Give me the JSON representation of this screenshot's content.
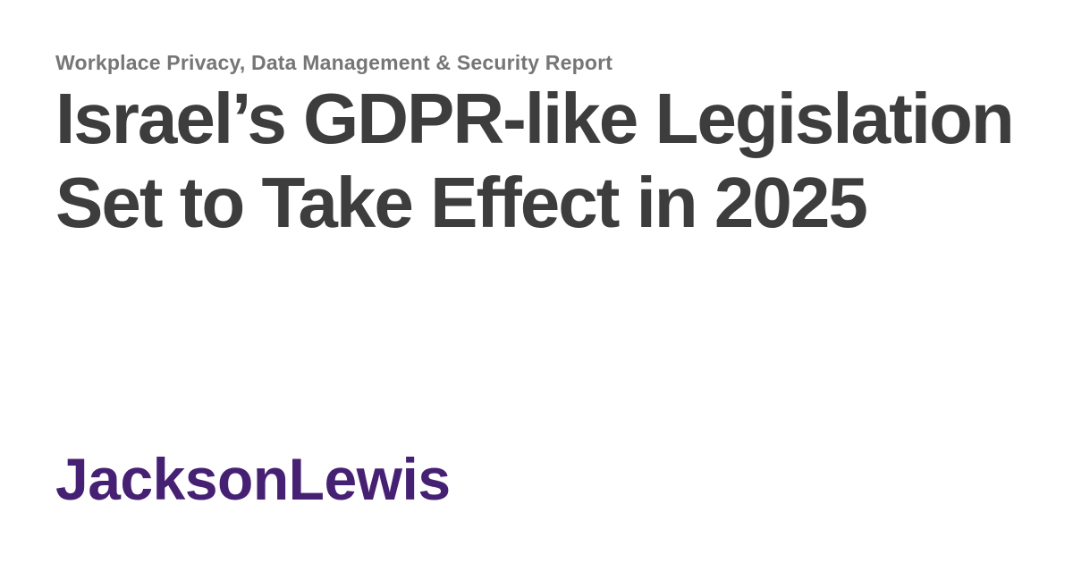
{
  "card": {
    "eyebrow": "Workplace Privacy, Data Management & Security Report",
    "title_line1": "Israel’s GDPR-like Legislation",
    "title_line2": "Set to Take Effect in 2025",
    "logo_text": "JacksonLewis",
    "colors": {
      "background": "#ffffff",
      "eyebrow_text": "#767676",
      "headline_text": "#3d3d3d",
      "logo_purple": "#462173"
    }
  }
}
